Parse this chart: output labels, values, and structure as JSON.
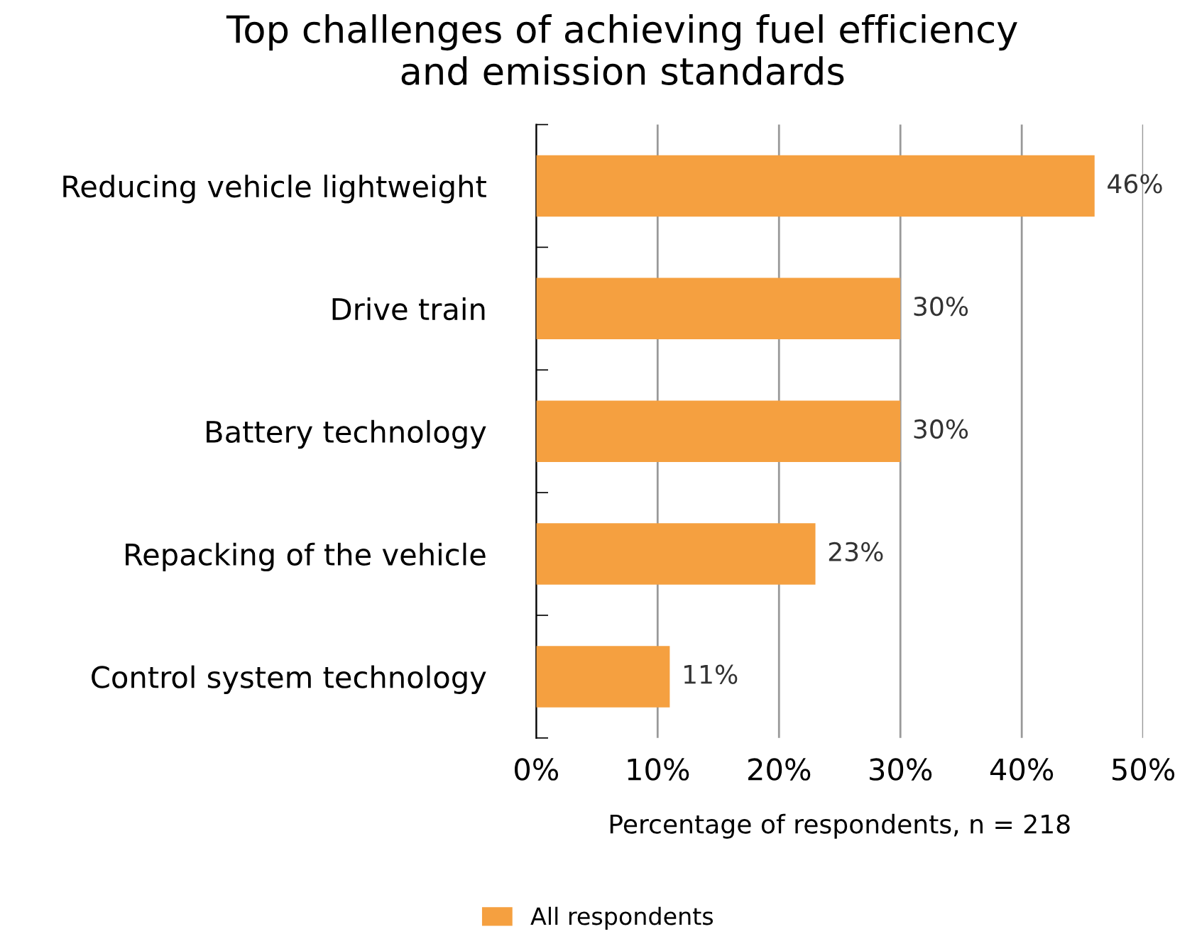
{
  "chart_data": {
    "type": "bar",
    "orientation": "horizontal",
    "title": "Top challenges of achieving fuel efficiency\nand emission standards",
    "categories": [
      "Reducing vehicle lightweight",
      "Drive train",
      "Battery technology",
      "Repacking of the vehicle",
      "Control system technology"
    ],
    "series": [
      {
        "name": "All respondents",
        "color": "#f5a040",
        "values": [
          46,
          30,
          30,
          23,
          11
        ],
        "value_labels": [
          "46%",
          "30%",
          "30%",
          "23%",
          "11%"
        ]
      }
    ],
    "xlabel": "Percentage of respondents, n = 218",
    "xlim": [
      0,
      50
    ],
    "xticks": [
      {
        "value": 0,
        "label": "0%"
      },
      {
        "value": 10,
        "label": "10%"
      },
      {
        "value": 20,
        "label": "20%"
      },
      {
        "value": 30,
        "label": "30%"
      },
      {
        "value": 40,
        "label": "40%"
      },
      {
        "value": 50,
        "label": "50%"
      }
    ],
    "grid": "x",
    "legend": "bottom"
  }
}
